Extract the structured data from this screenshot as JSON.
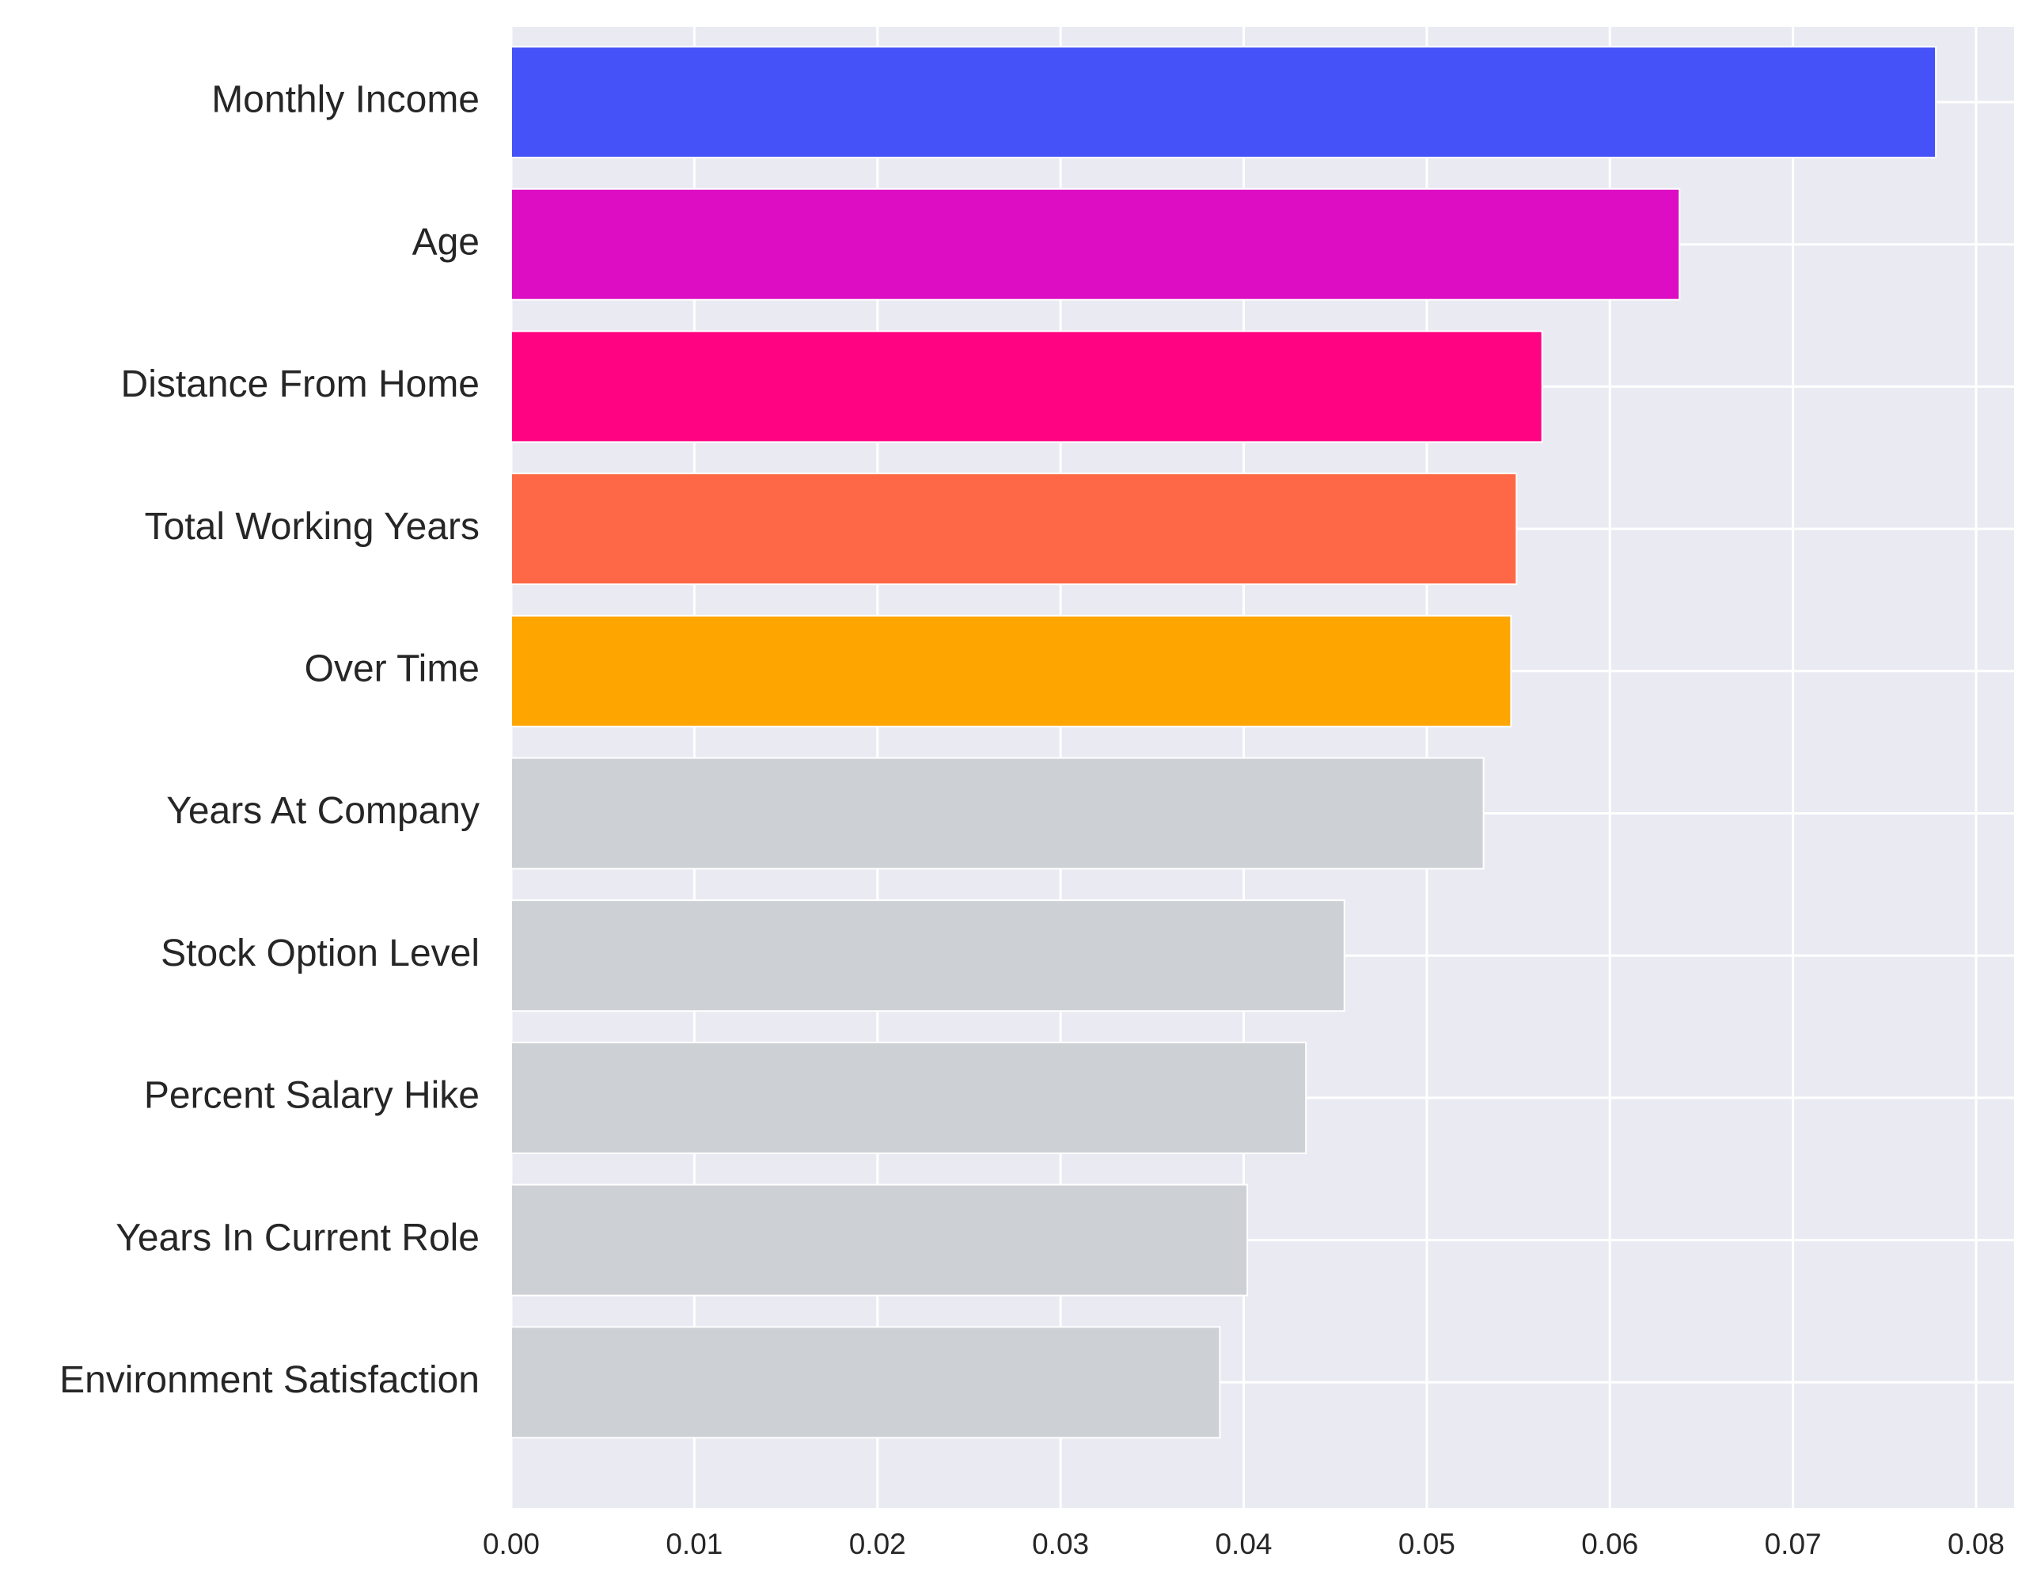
{
  "chart_data": {
    "type": "bar",
    "orientation": "horizontal",
    "title": "",
    "xlabel": "",
    "ylabel": "",
    "xlim": [
      0,
      0.081
    ],
    "xticks": [
      0.0,
      0.01,
      0.02,
      0.03,
      0.04,
      0.05,
      0.06,
      0.07,
      0.08
    ],
    "xtick_labels": [
      "0.00",
      "0.01",
      "0.02",
      "0.03",
      "0.04",
      "0.05",
      "0.06",
      "0.07",
      "0.08"
    ],
    "grid": true,
    "legend": "none",
    "categories": [
      "Monthly Income",
      "Age",
      "Distance From Home",
      "Total Working Years",
      "Over Time",
      "Years At Company",
      "Stock Option Level",
      "Percent Salary Hike",
      "Years In Current Role",
      "Environment Satisfaction"
    ],
    "values": [
      0.0778,
      0.0638,
      0.0563,
      0.0549,
      0.0546,
      0.0531,
      0.0455,
      0.0434,
      0.0402,
      0.0387
    ],
    "colors": [
      "#4452F7",
      "#DC0DC3",
      "#FF0382",
      "#FF6846",
      "#FFA500",
      "#CDD0D4",
      "#CDD0D4",
      "#CDD0D4",
      "#CDD0D4",
      "#CDD0D4"
    ],
    "plot_background": "#EAEAF2",
    "grid_color": "#FFFFFF"
  }
}
